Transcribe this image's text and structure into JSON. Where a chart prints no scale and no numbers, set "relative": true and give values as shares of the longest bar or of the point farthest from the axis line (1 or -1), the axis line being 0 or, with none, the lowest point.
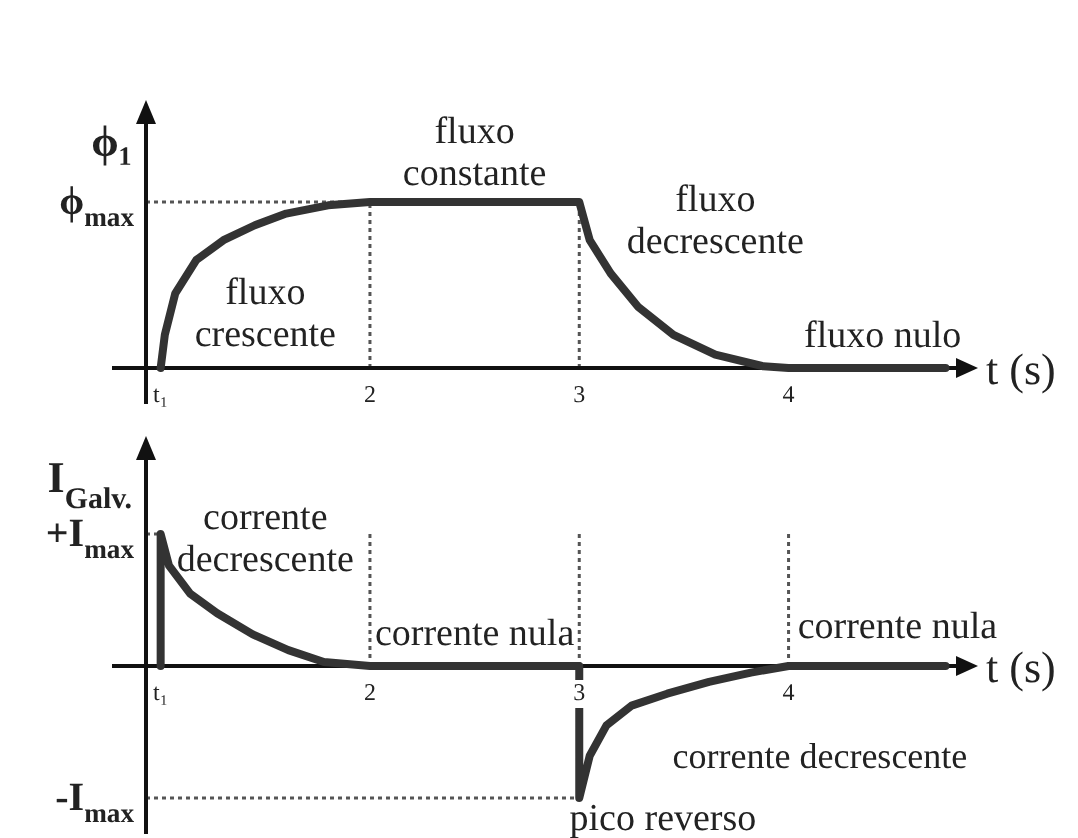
{
  "chart_data": [
    {
      "type": "line",
      "relative": true,
      "ylabel": "ϕ₁",
      "xlabel": "t (s)",
      "xlim": [
        0.93,
        4.8
      ],
      "xticks": [
        {
          "value": 1,
          "label": "t₁"
        },
        2,
        3,
        4
      ],
      "color": "#333333",
      "x": [
        1,
        1.02,
        1.07,
        1.17,
        1.3,
        1.45,
        1.6,
        1.8,
        2,
        3,
        3.05,
        3.15,
        3.28,
        3.45,
        3.65,
        3.88,
        4,
        4.75
      ],
      "values": [
        0,
        0.2,
        0.45,
        0.65,
        0.77,
        0.86,
        0.93,
        0.98,
        1,
        1,
        0.77,
        0.57,
        0.37,
        0.2,
        0.08,
        0.01,
        0,
        0
      ],
      "ref_lines": [
        {
          "axis": "y",
          "value": 1,
          "label": "ϕ$_{max}$",
          "line_style": "dotted",
          "color": "#555555"
        },
        {
          "axis": "x",
          "value": 2,
          "line_style": "dotted",
          "color": "#555555"
        },
        {
          "axis": "x",
          "value": 3,
          "line_style": "dotted",
          "color": "#555555"
        }
      ],
      "annotations": [
        "fluxo\ncrescente",
        "fluxo\nconstante",
        "fluxo\ndecrescente",
        "fluxo nulo"
      ]
    },
    {
      "type": "line",
      "relative": true,
      "ylabel": "I$_{Galv.}$",
      "xlabel": "t (s)",
      "xlim": [
        0.93,
        4.8
      ],
      "xticks": [
        {
          "value": 1,
          "label": "t₁"
        },
        2,
        3,
        4
      ],
      "color": "#333333",
      "x": [
        1,
        1,
        1.04,
        1.14,
        1.27,
        1.44,
        1.61,
        1.78,
        2,
        3,
        3,
        3.05,
        3.13,
        3.25,
        3.42,
        3.62,
        3.82,
        4,
        4.75
      ],
      "values": [
        0,
        1,
        0.76,
        0.55,
        0.4,
        0.24,
        0.12,
        0.03,
        0,
        0,
        -1,
        -0.68,
        -0.45,
        -0.3,
        -0.21,
        -0.12,
        -0.05,
        0,
        0
      ],
      "ref_lines": [
        {
          "axis": "y",
          "value": 1,
          "label": "+I$_{max}$",
          "line_style": "dotted",
          "color": "#555555"
        },
        {
          "axis": "y",
          "value": -1,
          "label": "-I$_{max}$",
          "line_style": "dotted",
          "color": "#555555"
        },
        {
          "axis": "x",
          "value": 2,
          "line_style": "dotted",
          "color": "#555555"
        },
        {
          "axis": "x",
          "value": 3,
          "line_style": "dotted",
          "color": "#555555"
        },
        {
          "axis": "x",
          "value": 4,
          "line_style": "dotted",
          "color": "#555555"
        }
      ],
      "annotations": [
        "corrente\ndecrescente",
        "corrente nula",
        "corrente nula",
        "corrente decrescente",
        "pico reverso"
      ]
    }
  ]
}
